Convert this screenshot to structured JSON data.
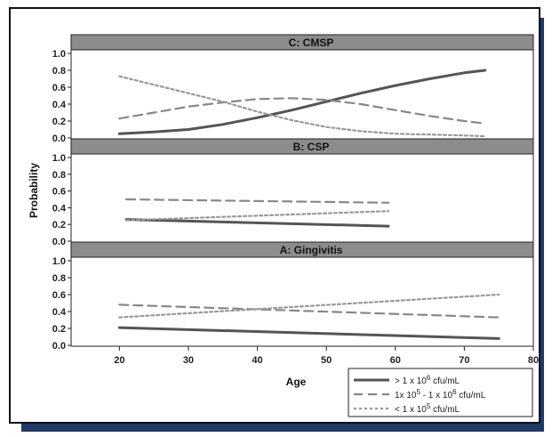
{
  "chart_data": {
    "type": "line",
    "xlabel": "Age",
    "ylabel": "Probability",
    "xlim": [
      13,
      80
    ],
    "ylim": [
      0,
      1.0
    ],
    "x_ticks": [
      20,
      30,
      40,
      50,
      60,
      70,
      80
    ],
    "y_ticks": [
      0.0,
      0.2,
      0.4,
      0.6,
      0.8,
      1.0
    ],
    "legend_position": "bottom-right",
    "series_styles": [
      {
        "key": "high",
        "legend": "> 1 x 10^6 cfu/mL",
        "stroke": "#555555",
        "dash": "none",
        "width": 3
      },
      {
        "key": "mid",
        "legend": "1x 10^5 - 1 x 10^6 cfu/mL",
        "stroke": "#888888",
        "dash": "10,6",
        "width": 2.2
      },
      {
        "key": "low",
        "legend": "< 1 x 10^5 cfu/mL",
        "stroke": "#999999",
        "dash": "3,3",
        "width": 2.2
      }
    ],
    "panels": [
      {
        "title": "C: CMSP",
        "series": [
          {
            "key": "high",
            "x": [
              20,
              25,
              30,
              35,
              40,
              45,
              50,
              55,
              60,
              65,
              70,
              73
            ],
            "values": [
              0.05,
              0.07,
              0.1,
              0.16,
              0.24,
              0.33,
              0.43,
              0.53,
              0.62,
              0.7,
              0.77,
              0.8
            ]
          },
          {
            "key": "mid",
            "x": [
              20,
              25,
              30,
              35,
              40,
              45,
              50,
              55,
              60,
              65,
              70,
              73
            ],
            "values": [
              0.23,
              0.3,
              0.37,
              0.42,
              0.46,
              0.47,
              0.45,
              0.4,
              0.33,
              0.26,
              0.2,
              0.17
            ]
          },
          {
            "key": "low",
            "x": [
              20,
              25,
              30,
              35,
              40,
              45,
              50,
              55,
              60,
              65,
              70,
              73
            ],
            "values": [
              0.73,
              0.63,
              0.53,
              0.43,
              0.31,
              0.21,
              0.13,
              0.08,
              0.05,
              0.04,
              0.03,
              0.02
            ]
          }
        ]
      },
      {
        "title": "B: CSP",
        "series": [
          {
            "key": "high",
            "x": [
              21,
              59
            ],
            "values": [
              0.26,
              0.18
            ]
          },
          {
            "key": "mid",
            "x": [
              21,
              59
            ],
            "values": [
              0.5,
              0.46
            ]
          },
          {
            "key": "low",
            "x": [
              21,
              59
            ],
            "values": [
              0.25,
              0.36
            ]
          }
        ]
      },
      {
        "title": "A: Gingivitis",
        "series": [
          {
            "key": "high",
            "x": [
              20,
              75
            ],
            "values": [
              0.21,
              0.08
            ]
          },
          {
            "key": "mid",
            "x": [
              20,
              75
            ],
            "values": [
              0.48,
              0.33
            ]
          },
          {
            "key": "low",
            "x": [
              20,
              75
            ],
            "values": [
              0.33,
              0.6
            ]
          }
        ]
      }
    ]
  }
}
